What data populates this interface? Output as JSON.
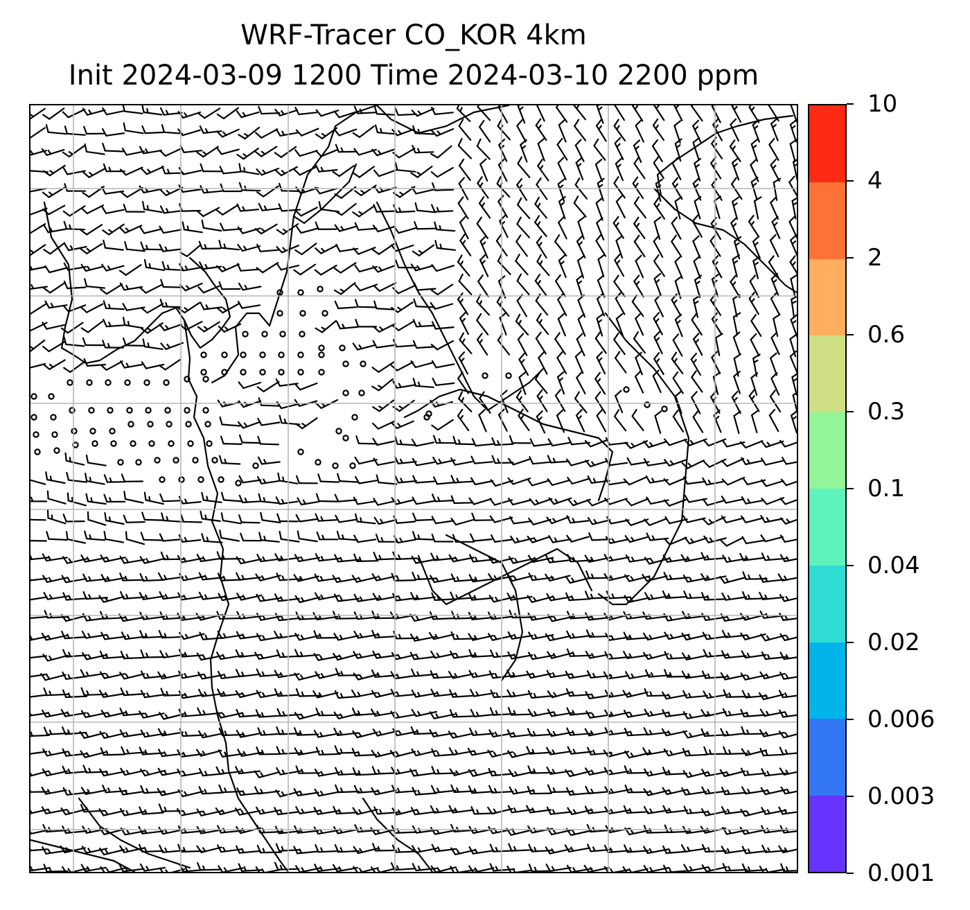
{
  "title": {
    "line1": "WRF-Tracer CO_KOR 4km",
    "line2": "Init 2024-03-09 1200 Time 2024-03-10 2200 ppm"
  },
  "map": {
    "gridlines": true,
    "gridline_color": "#b5b5b5",
    "coastline_color": "#000000",
    "layer": "wind-barbs"
  },
  "colorbar": {
    "labels": [
      "0.001",
      "0.003",
      "0.006",
      "0.02",
      "0.04",
      "0.1",
      "0.3",
      "0.6",
      "2",
      "4",
      "10"
    ],
    "colors": [
      "#6633ff",
      "#3377f5",
      "#00b4ea",
      "#2edcd4",
      "#5ef2bc",
      "#92f59a",
      "#cfe084",
      "#ffae60",
      "#ff7236",
      "#ff2a14"
    ]
  }
}
